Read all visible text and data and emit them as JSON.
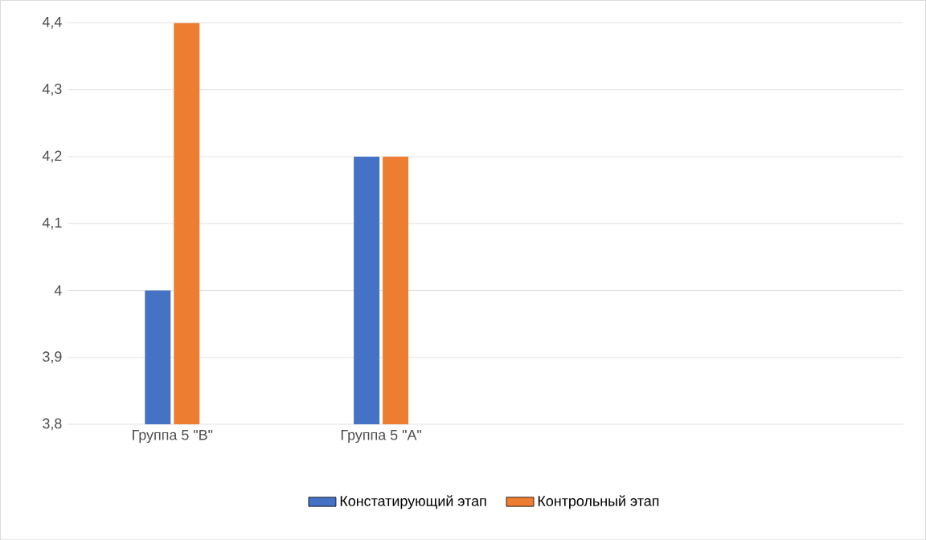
{
  "chart_data": {
    "type": "bar",
    "categories": [
      "Группа 5 \"В\"",
      "Группа 5 \"А\""
    ],
    "series": [
      {
        "name": "Констатирующий этап",
        "color": "#4472c4",
        "values": [
          4.0,
          4.2
        ]
      },
      {
        "name": "Контрольный этап",
        "color": "#ed7d31",
        "values": [
          4.4,
          4.2
        ]
      }
    ],
    "ylim": [
      3.8,
      4.4
    ],
    "yticks": [
      {
        "value": 3.8,
        "label": "3,8"
      },
      {
        "value": 3.9,
        "label": "3,9"
      },
      4,
      {
        "value": 4.1,
        "label": "4,1"
      },
      {
        "value": 4.2,
        "label": "4,2"
      },
      {
        "value": 4.3,
        "label": "4,3"
      },
      {
        "value": 4.4,
        "label": "4,4"
      }
    ],
    "grid": "y",
    "legend": "bottom"
  }
}
